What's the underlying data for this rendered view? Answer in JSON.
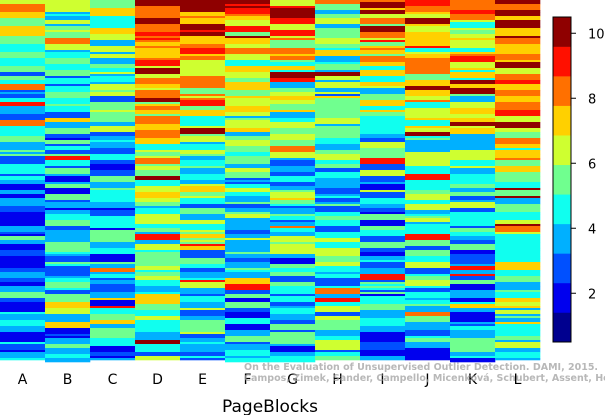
{
  "chart_data": {
    "type": "heatmap",
    "xlabel": "PageBlocks",
    "columns": [
      "A",
      "B",
      "C",
      "D",
      "E",
      "F",
      "G",
      "H",
      "I",
      "J",
      "K",
      "L"
    ],
    "colorbar": {
      "range": [
        0.5,
        10.5
      ],
      "ticks": [
        2,
        4,
        6,
        8,
        10
      ],
      "bins": 10,
      "palette": [
        "#00008f",
        "#0000ee",
        "#0050ff",
        "#00b0ff",
        "#10ffef",
        "#70ff8f",
        "#cfff30",
        "#ffd000",
        "#ff7000",
        "#ff1000",
        "#8f0000"
      ]
    },
    "watermark": {
      "line1": "On the Evaluation of Unsupervised Outlier Detection. DAMI, 2015.",
      "line2": "Campos, Zimek, Sander, Campello, Micenková, Schubert, Assent, Houle"
    }
  },
  "columns_profile": [
    [
      7,
      2,
      4
    ],
    [
      5,
      3,
      3.5
    ],
    [
      6,
      3,
      4
    ],
    [
      9.5,
      3,
      2
    ],
    [
      9,
      3,
      2.5
    ],
    [
      8,
      3,
      3
    ],
    [
      8,
      3,
      3
    ],
    [
      6,
      4,
      7
    ],
    [
      9,
      2,
      3
    ],
    [
      8.5,
      3,
      3
    ],
    [
      7,
      2,
      2
    ],
    [
      10,
      4,
      2.5
    ]
  ]
}
